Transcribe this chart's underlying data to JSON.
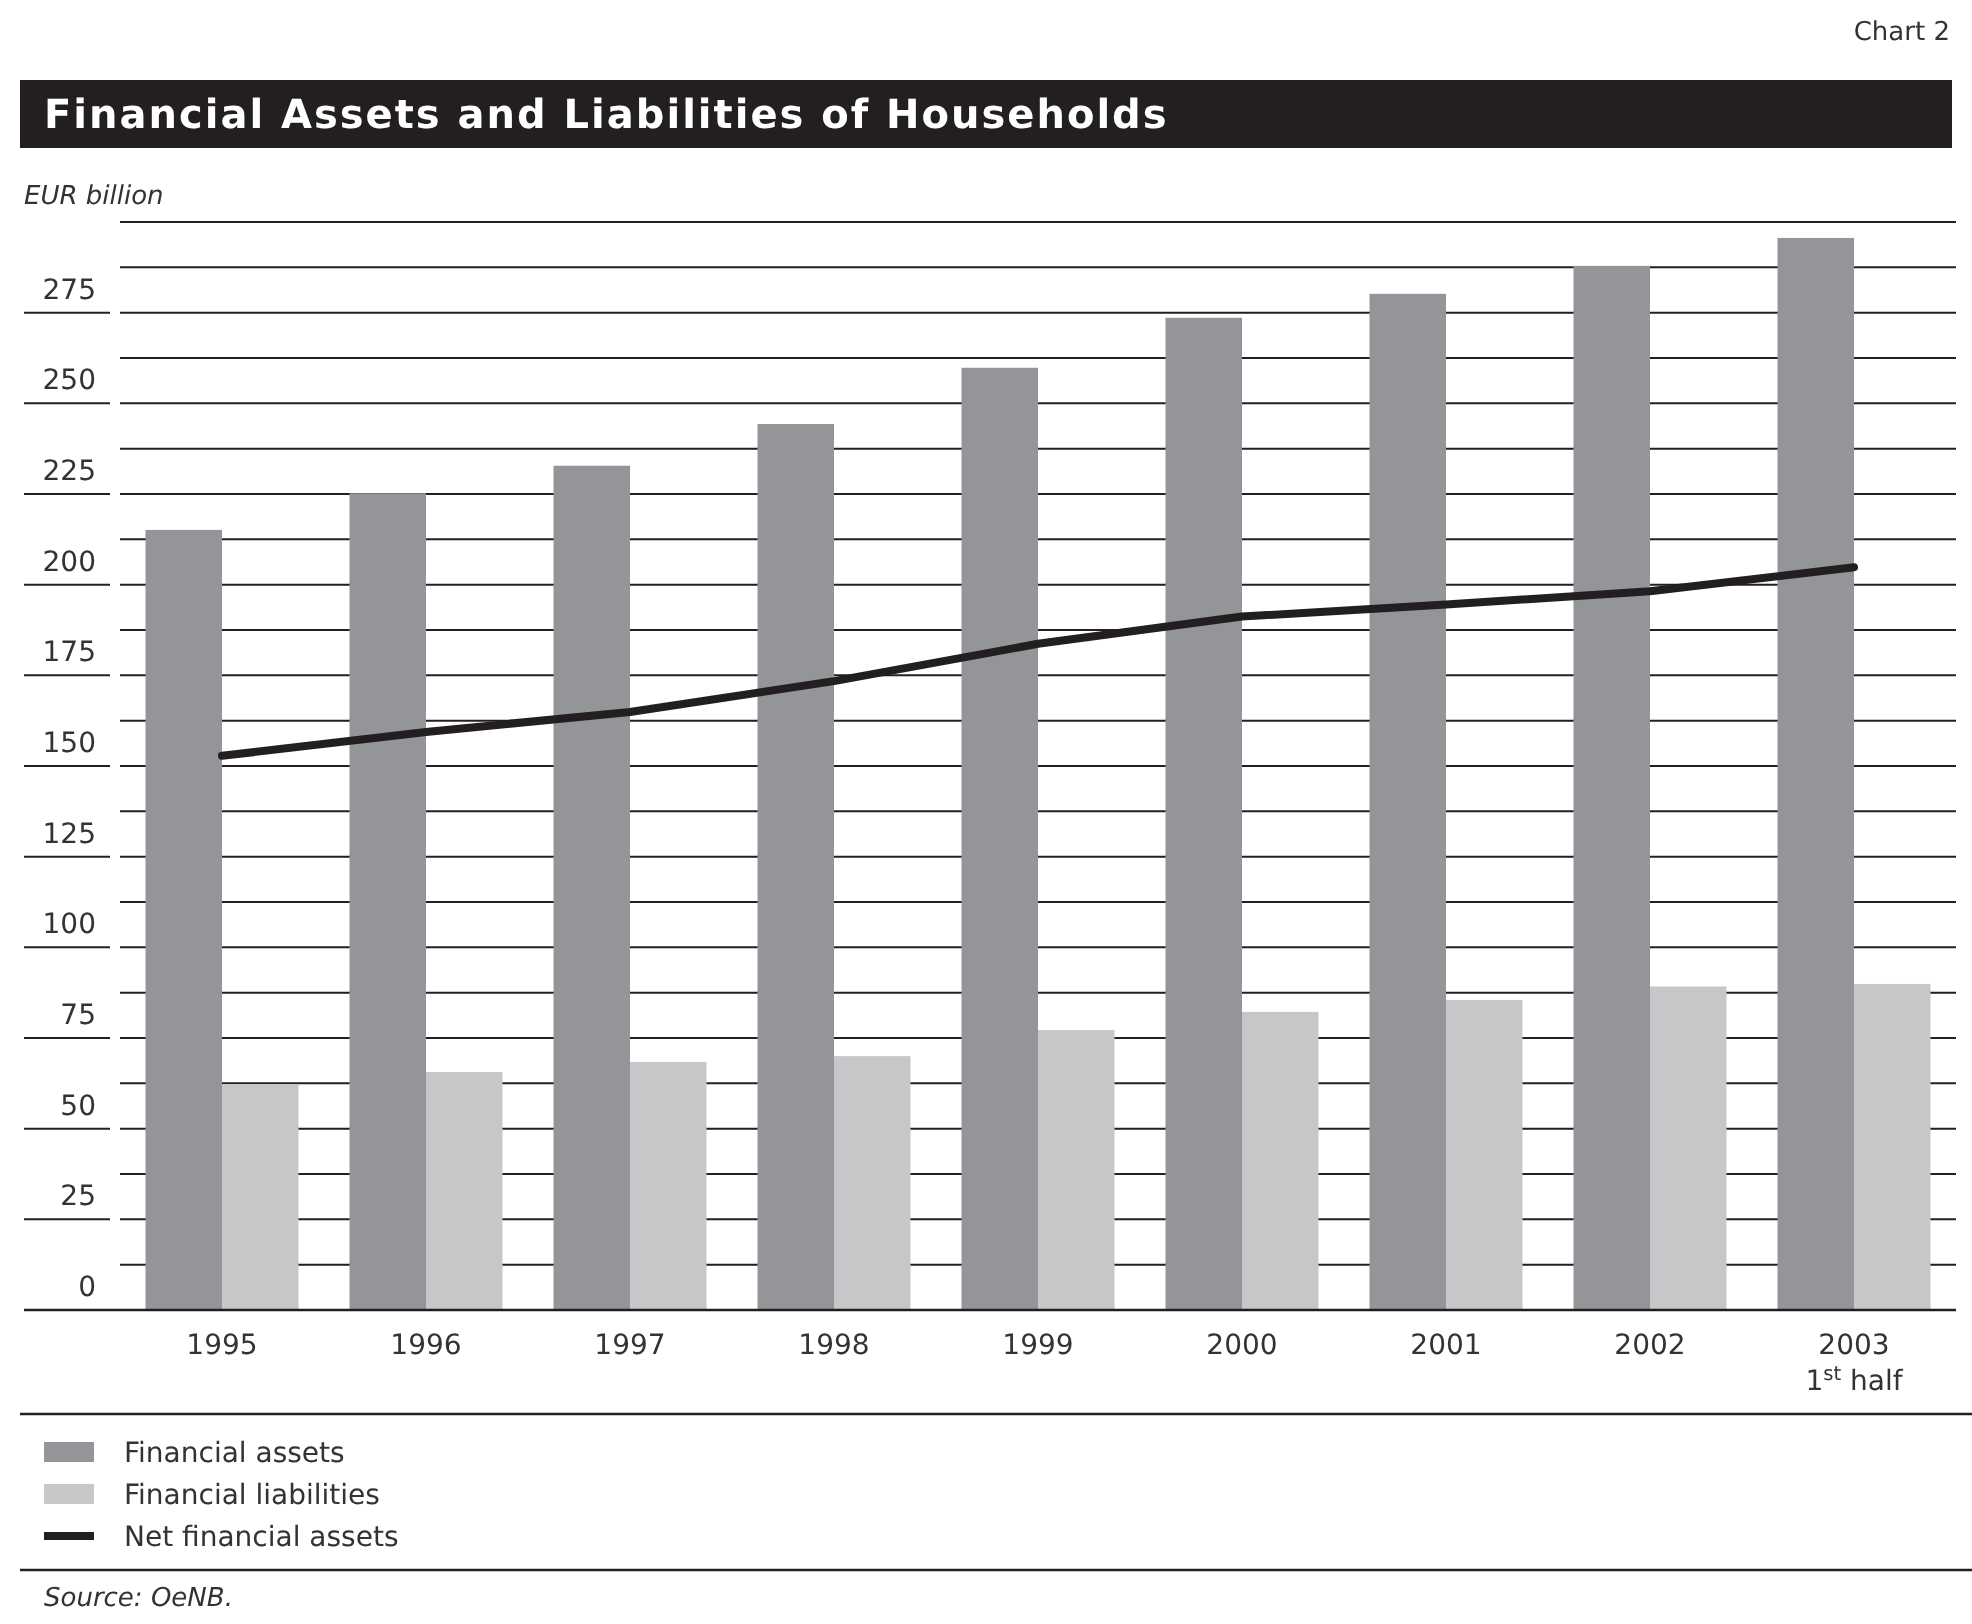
{
  "chart_data": {
    "type": "bar",
    "title": "Financial Assets and Liabilities of Households",
    "ylabel": "EUR billion",
    "categories": [
      "1995",
      "1996",
      "1997",
      "1998",
      "1999",
      "2000",
      "2001",
      "2002",
      "2003\n1$^{st}$ half"
    ],
    "series": [
      {
        "name": "Financial assets",
        "color": "#939598",
        "values": [
          215.1,
          225.2,
          232.8,
          244.3,
          259.8,
          273.6,
          280.2,
          287.9,
          295.6
        ]
      },
      {
        "name": "Financial liabilities",
        "color": "#c6c7c9",
        "values": [
          62.2,
          65.6,
          68.4,
          70.0,
          77.2,
          82.2,
          85.5,
          89.2,
          89.9
        ]
      },
      {
        "name": "Net financial assets",
        "type": "line",
        "color": "#231f20",
        "values": [
          152.8,
          159.4,
          164.9,
          173.4,
          183.7,
          191.2,
          194.5,
          198.2,
          204.8
        ]
      }
    ],
    "ylim": [
      0,
      300
    ],
    "yticks": [
      0,
      {
        "value": 12.5,
        "label": null
      },
      25,
      {
        "value": 37.5,
        "label": null
      },
      50,
      {
        "value": 62.5,
        "label": null
      },
      75,
      {
        "value": 87.5,
        "label": null
      },
      100,
      {
        "value": 112.5,
        "label": null
      },
      125,
      {
        "value": 137.5,
        "label": null
      },
      150,
      {
        "value": 162.5,
        "label": null
      },
      175,
      {
        "value": 187.5,
        "label": null
      },
      200,
      {
        "value": 212.5,
        "label": null
      },
      225,
      {
        "value": 237.5,
        "label": null
      },
      250,
      {
        "value": 262.5,
        "label": null
      },
      275,
      {
        "value": 287.5,
        "label": null
      },
      {
        "value": 300,
        "label": null
      }
    ],
    "grid": true,
    "legend": "bottom",
    "line_style": "solid",
    "marker": "none",
    "annotations": [
      "Chart 2",
      "Source: OeNB."
    ]
  }
}
